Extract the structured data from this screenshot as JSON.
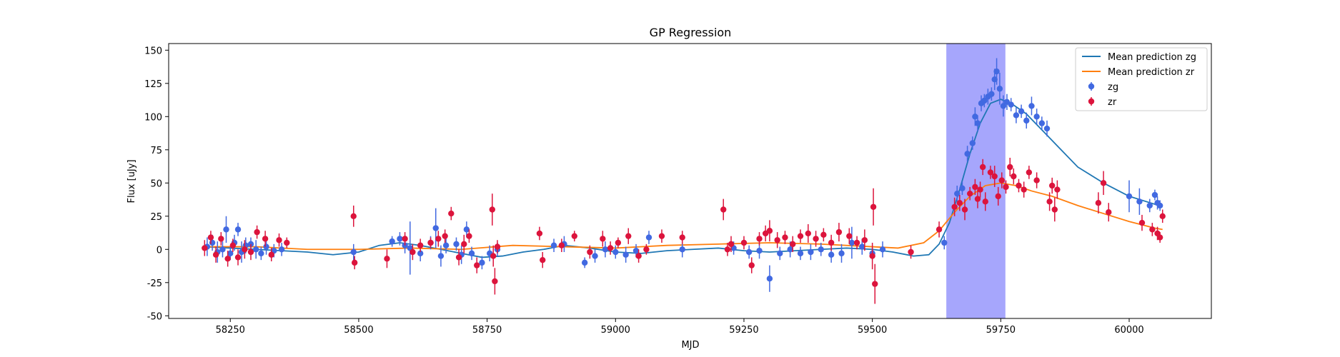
{
  "chart_data": {
    "type": "scatter",
    "title": "GP Regression",
    "xlabel": "MJD",
    "ylabel": "Flux [uJy]",
    "xlim": [
      58130,
      60160
    ],
    "ylim": [
      -52,
      155
    ],
    "xticks": [
      58250,
      58500,
      58750,
      59000,
      59250,
      59500,
      59750,
      60000
    ],
    "yticks": [
      -50,
      -25,
      0,
      25,
      50,
      75,
      100,
      125,
      150
    ],
    "legend_position": "top-right",
    "grid": false,
    "shaded_span": {
      "x0": 59644,
      "x1": 59759,
      "color": "#a6a6fc"
    },
    "series": [
      {
        "name": "Mean prediction zg",
        "kind": "line",
        "color": "#1f77b4",
        "x": [
          58200,
          58250,
          58300,
          58350,
          58400,
          58450,
          58500,
          58540,
          58580,
          58620,
          58660,
          58700,
          58740,
          58780,
          58820,
          58860,
          58900,
          58950,
          59000,
          59050,
          59100,
          59150,
          59200,
          59250,
          59300,
          59350,
          59400,
          59450,
          59500,
          59540,
          59580,
          59610,
          59630,
          59650,
          59670,
          59690,
          59710,
          59730,
          59750,
          59770,
          59800,
          59830,
          59860,
          59900,
          59950,
          60000,
          60050,
          60065
        ],
        "y": [
          2,
          1,
          0,
          -1,
          -2,
          -4,
          -2,
          3,
          5,
          3,
          0,
          -3,
          -6,
          -5,
          -2,
          0,
          3,
          1,
          -2,
          -3,
          -1,
          0,
          1,
          -1,
          -2,
          -1,
          0,
          1,
          0,
          -2,
          -5,
          -4,
          4,
          20,
          45,
          72,
          95,
          110,
          113,
          110,
          102,
          90,
          78,
          62,
          50,
          40,
          34,
          32
        ]
      },
      {
        "name": "Mean prediction zr",
        "kind": "line",
        "color": "#ff7f0e",
        "x": [
          58200,
          58300,
          58400,
          58500,
          58600,
          58700,
          58800,
          58900,
          59000,
          59100,
          59200,
          59300,
          59400,
          59500,
          59550,
          59600,
          59630,
          59660,
          59690,
          59720,
          59750,
          59780,
          59810,
          59850,
          59900,
          59950,
          60000,
          60050,
          60065
        ],
        "y": [
          2,
          2,
          0,
          0,
          1,
          0,
          3,
          2,
          1,
          3,
          4,
          5,
          4,
          2,
          1,
          5,
          14,
          28,
          40,
          48,
          50,
          48,
          44,
          40,
          33,
          27,
          21,
          16,
          15
        ]
      },
      {
        "name": "zg",
        "kind": "errorbar",
        "color": "#4169e1",
        "x": [
          58205,
          58215,
          58225,
          58235,
          58242,
          58250,
          58258,
          58265,
          58272,
          58280,
          58290,
          58300,
          58310,
          58320,
          58335,
          58350,
          58490,
          58565,
          58580,
          58590,
          58600,
          58620,
          58640,
          58650,
          58660,
          58670,
          58690,
          58700,
          58710,
          58720,
          58740,
          58755,
          58770,
          58880,
          58900,
          58940,
          58960,
          58980,
          59000,
          59020,
          59040,
          59065,
          59130,
          59230,
          59260,
          59280,
          59300,
          59320,
          59340,
          59360,
          59380,
          59400,
          59420,
          59440,
          59460,
          59480,
          59500,
          59520,
          59640,
          59665,
          59675,
          59685,
          59695,
          59700,
          59705,
          59712,
          59718,
          59725,
          59732,
          59738,
          59742,
          59748,
          59755,
          59762,
          59770,
          59780,
          59790,
          59800,
          59810,
          59820,
          59830,
          59840,
          60000,
          60020,
          60040,
          60050,
          60055,
          60060
        ],
        "y": [
          2,
          5,
          -2,
          0,
          15,
          -3,
          5,
          15,
          -2,
          3,
          4,
          0,
          -3,
          2,
          -1,
          0,
          -2,
          6,
          8,
          3,
          1,
          -3,
          5,
          16,
          -5,
          3,
          4,
          -4,
          15,
          -3,
          -10,
          -3,
          0,
          3,
          4,
          -10,
          -5,
          0,
          -2,
          -4,
          -1,
          9,
          0,
          1,
          -2,
          -1,
          -22,
          -3,
          0,
          -3,
          -2,
          0,
          -4,
          -3,
          5,
          2,
          -3,
          0,
          5,
          42,
          46,
          72,
          80,
          100,
          95,
          110,
          112,
          115,
          117,
          128,
          134,
          121,
          108,
          111,
          109,
          101,
          104,
          97,
          108,
          100,
          95,
          91,
          40,
          36,
          33,
          41,
          35,
          33
        ],
        "yerr": [
          7,
          6,
          8,
          6,
          10,
          5,
          6,
          5,
          8,
          6,
          5,
          7,
          5,
          6,
          5,
          5,
          6,
          4,
          5,
          6,
          20,
          6,
          5,
          15,
          8,
          6,
          5,
          7,
          6,
          5,
          5,
          6,
          5,
          5,
          6,
          4,
          5,
          6,
          5,
          6,
          5,
          5,
          6,
          5,
          5,
          6,
          10,
          5,
          6,
          5,
          6,
          5,
          6,
          7,
          12,
          6,
          5,
          6,
          5,
          6,
          5,
          6,
          5,
          7,
          6,
          6,
          5,
          6,
          5,
          8,
          10,
          12,
          8,
          6,
          5,
          6,
          5,
          6,
          7,
          6,
          5,
          6,
          12,
          10,
          5,
          4,
          5,
          4
        ]
      },
      {
        "name": "zr",
        "kind": "errorbar",
        "color": "#dc143c",
        "x": [
          58200,
          58212,
          58222,
          58232,
          58245,
          58255,
          58265,
          58278,
          58290,
          58302,
          58318,
          58330,
          58345,
          58360,
          58490,
          58492,
          58555,
          58590,
          58605,
          58620,
          58640,
          58655,
          58668,
          58680,
          58695,
          58705,
          58715,
          58730,
          58760,
          58762,
          58765,
          58770,
          58852,
          58858,
          58895,
          58920,
          58950,
          58975,
          58990,
          59005,
          59025,
          59045,
          59060,
          59090,
          59130,
          59210,
          59218,
          59225,
          59250,
          59265,
          59280,
          59292,
          59300,
          59315,
          59330,
          59345,
          59360,
          59375,
          59390,
          59405,
          59420,
          59435,
          59455,
          59470,
          59485,
          59500,
          59502,
          59505,
          59575,
          59630,
          59660,
          59670,
          59680,
          59690,
          59700,
          59705,
          59710,
          59715,
          59720,
          59730,
          59738,
          59745,
          59752,
          59760,
          59768,
          59775,
          59785,
          59795,
          59805,
          59820,
          59845,
          59850,
          59855,
          59860,
          59940,
          59950,
          59960,
          60025,
          60045,
          60055,
          60060,
          60065
        ],
        "y": [
          1,
          9,
          -4,
          8,
          -7,
          3,
          -6,
          0,
          -2,
          13,
          8,
          -4,
          7,
          5,
          25,
          -10,
          -7,
          8,
          -2,
          3,
          5,
          8,
          10,
          27,
          -6,
          4,
          10,
          -12,
          30,
          -5,
          -24,
          2,
          12,
          -8,
          3,
          10,
          -2,
          8,
          1,
          5,
          10,
          -5,
          0,
          10,
          9,
          30,
          0,
          4,
          5,
          -12,
          8,
          12,
          14,
          7,
          9,
          4,
          10,
          12,
          8,
          11,
          5,
          13,
          10,
          5,
          7,
          -5,
          32,
          -26,
          -2,
          15,
          32,
          35,
          30,
          42,
          47,
          38,
          45,
          62,
          36,
          58,
          55,
          40,
          52,
          47,
          62,
          55,
          48,
          45,
          58,
          52,
          36,
          48,
          30,
          45,
          35,
          50,
          28,
          20,
          15,
          12,
          9,
          25
        ],
        "yerr": [
          6,
          5,
          6,
          5,
          6,
          5,
          6,
          7,
          6,
          5,
          6,
          5,
          5,
          4,
          8,
          5,
          7,
          5,
          6,
          5,
          4,
          6,
          5,
          5,
          6,
          7,
          5,
          6,
          12,
          8,
          10,
          5,
          5,
          6,
          5,
          4,
          5,
          6,
          5,
          4,
          6,
          5,
          4,
          5,
          5,
          8,
          5,
          6,
          5,
          6,
          5,
          6,
          8,
          6,
          5,
          6,
          5,
          7,
          6,
          5,
          6,
          7,
          6,
          5,
          8,
          10,
          14,
          15,
          5,
          6,
          7,
          6,
          8,
          5,
          6,
          7,
          6,
          6,
          7,
          5,
          8,
          7,
          6,
          5,
          7,
          6,
          5,
          6,
          5,
          6,
          7,
          6,
          9,
          7,
          8,
          9,
          7,
          6,
          5,
          5,
          4,
          5
        ]
      }
    ]
  }
}
